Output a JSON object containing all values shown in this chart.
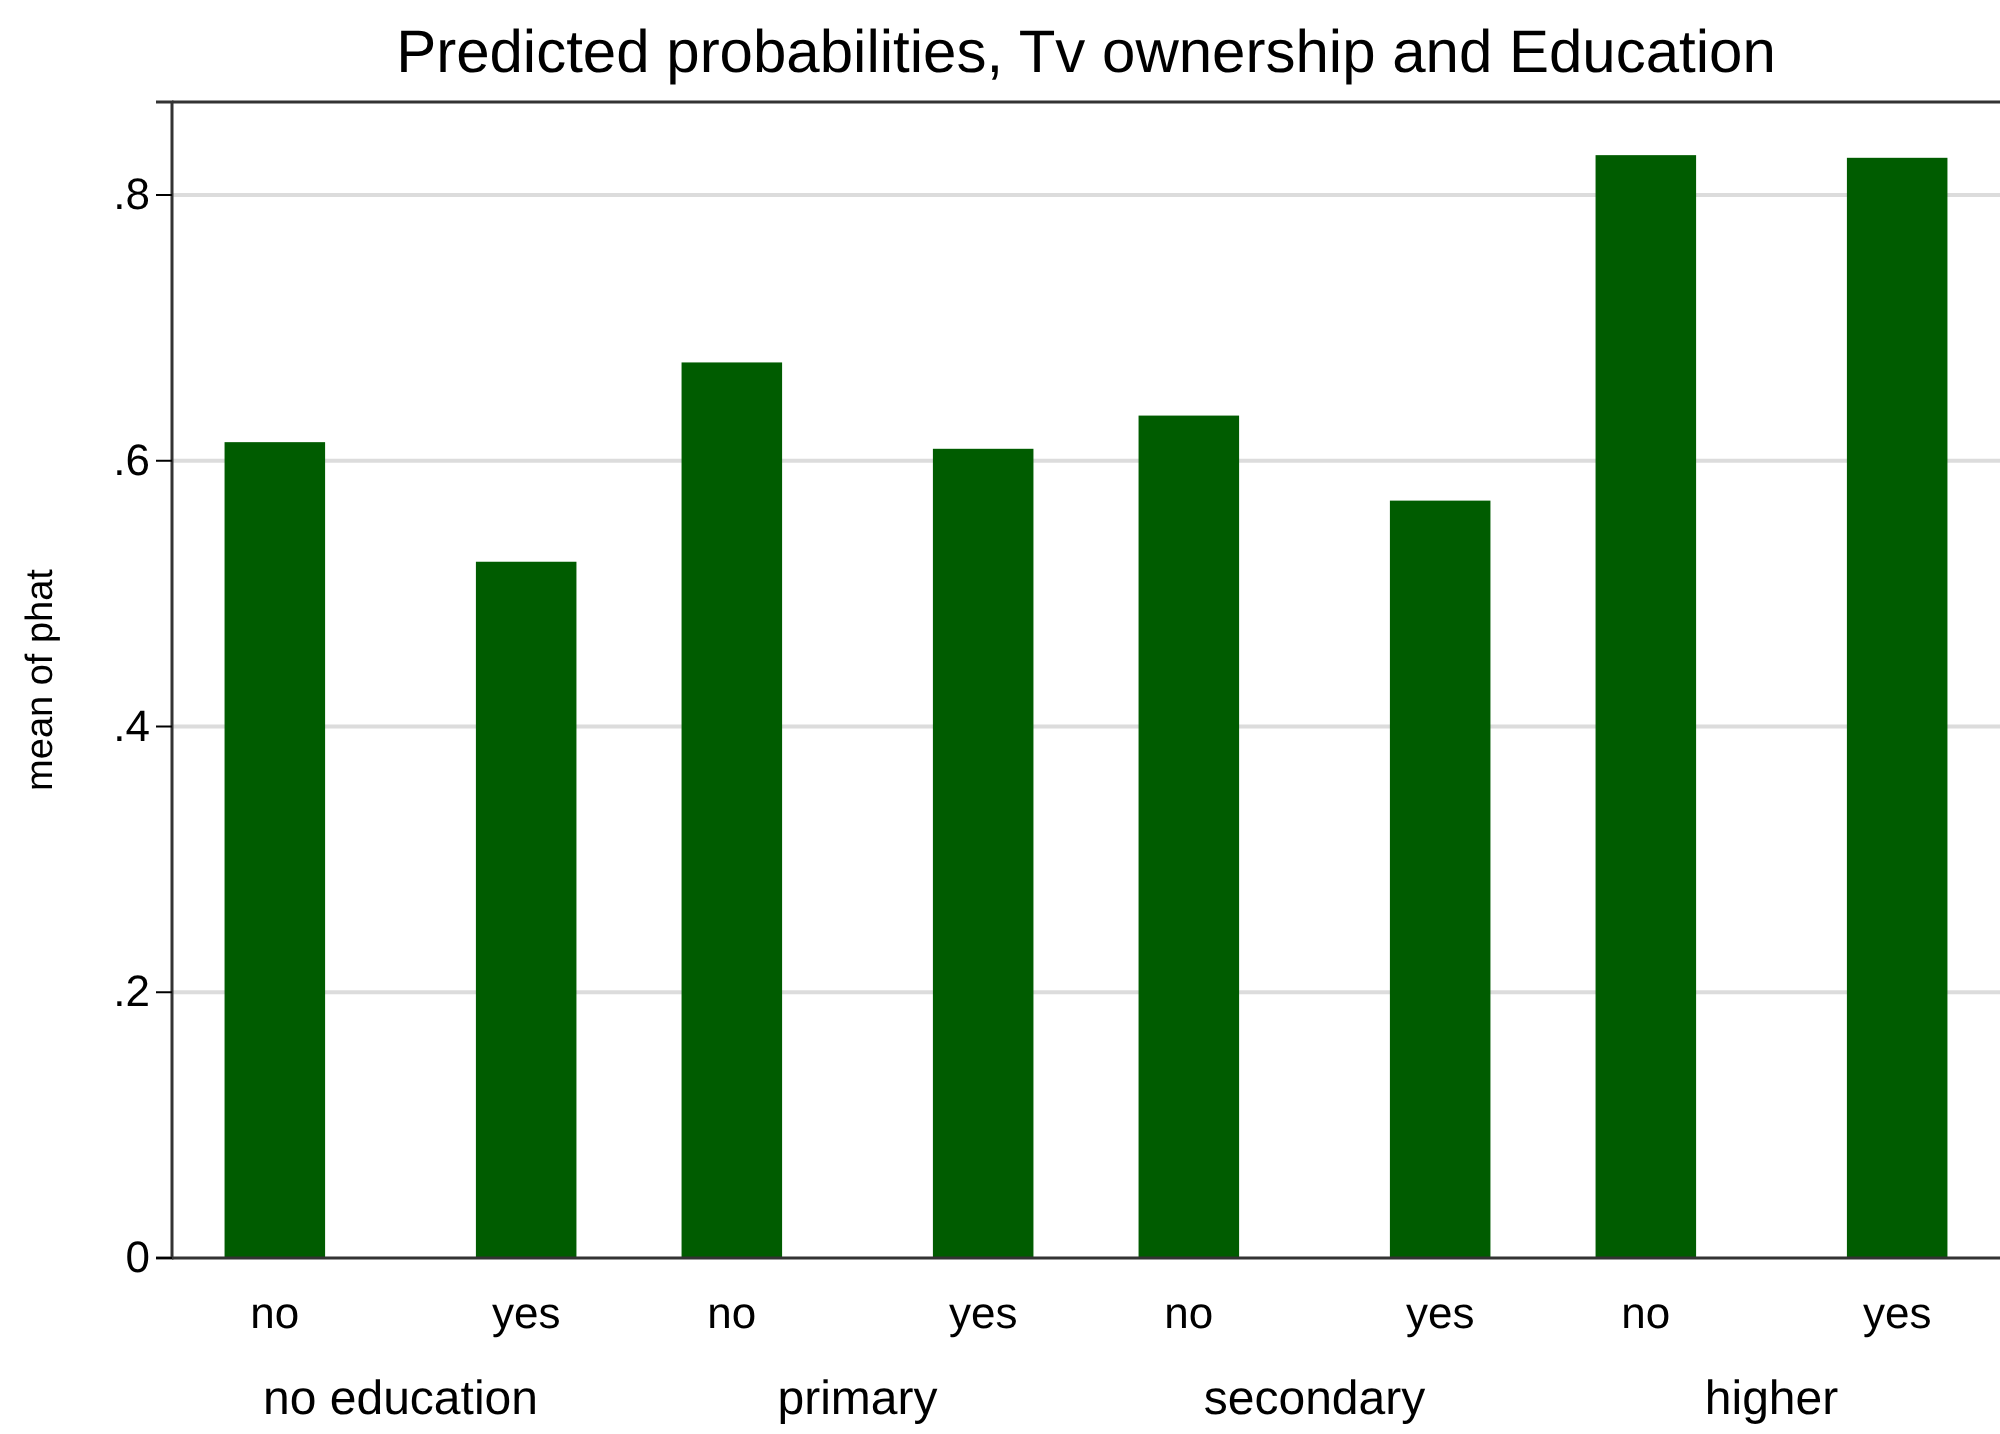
{
  "chart_data": {
    "type": "bar",
    "title": "Predicted probabilities, Tv ownership and Education",
    "ylabel": "mean of phat",
    "categories": [
      "no education",
      "primary",
      "secondary",
      "higher"
    ],
    "series": [
      {
        "name": "no",
        "color": "#005c00",
        "values": [
          0.614,
          0.674,
          0.634,
          0.83
        ]
      },
      {
        "name": "yes",
        "color": "#005c00",
        "values": [
          0.524,
          0.609,
          0.57,
          0.828
        ]
      }
    ],
    "ylim": [
      0,
      0.87
    ],
    "yticks": [
      0,
      {
        "value": 0.2,
        "label": ".2"
      },
      {
        "value": 0.4,
        "label": ".4"
      },
      {
        "value": 0.6,
        "label": ".6"
      },
      {
        "value": 0.8,
        "label": ".8"
      }
    ],
    "grid": "y"
  }
}
